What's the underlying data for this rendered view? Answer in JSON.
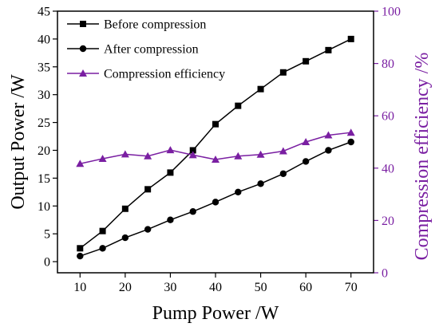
{
  "chart_data": {
    "type": "line",
    "title": "",
    "xlabel": "Pump Power /W",
    "ylabel": "Output Power /W",
    "y2label": "Compression efficiency /%",
    "x": [
      10,
      15,
      20,
      25,
      30,
      35,
      40,
      45,
      50,
      55,
      60,
      65,
      70
    ],
    "xticks": [
      10,
      20,
      30,
      40,
      50,
      60,
      70
    ],
    "xlim": [
      5,
      75
    ],
    "ylim": [
      -2,
      45
    ],
    "yticks": [
      0,
      5,
      10,
      15,
      20,
      25,
      30,
      35,
      40,
      45
    ],
    "y2lim": [
      0,
      100
    ],
    "y2ticks": [
      0,
      20,
      40,
      60,
      80,
      100
    ],
    "grid": false,
    "legend_position": "top-left",
    "series": [
      {
        "name": "Before compression",
        "axis": "left",
        "marker": "square",
        "color": "#000000",
        "values": [
          2.4,
          5.5,
          9.5,
          13.0,
          16.0,
          20.0,
          24.7,
          28.0,
          31.0,
          34.0,
          36.0,
          38.0,
          40.0
        ]
      },
      {
        "name": "After compression",
        "axis": "left",
        "marker": "circle",
        "color": "#000000",
        "values": [
          1.0,
          2.4,
          4.3,
          5.8,
          7.5,
          9.0,
          10.7,
          12.5,
          14.0,
          15.8,
          18.0,
          20.0,
          21.5
        ]
      },
      {
        "name": "Compression efficiency",
        "axis": "right",
        "marker": "triangle",
        "color": "#7a1fa2",
        "values": [
          41.7,
          43.6,
          45.3,
          44.6,
          46.9,
          45.0,
          43.3,
          44.6,
          45.2,
          46.5,
          50.0,
          52.6,
          53.6
        ]
      }
    ]
  }
}
